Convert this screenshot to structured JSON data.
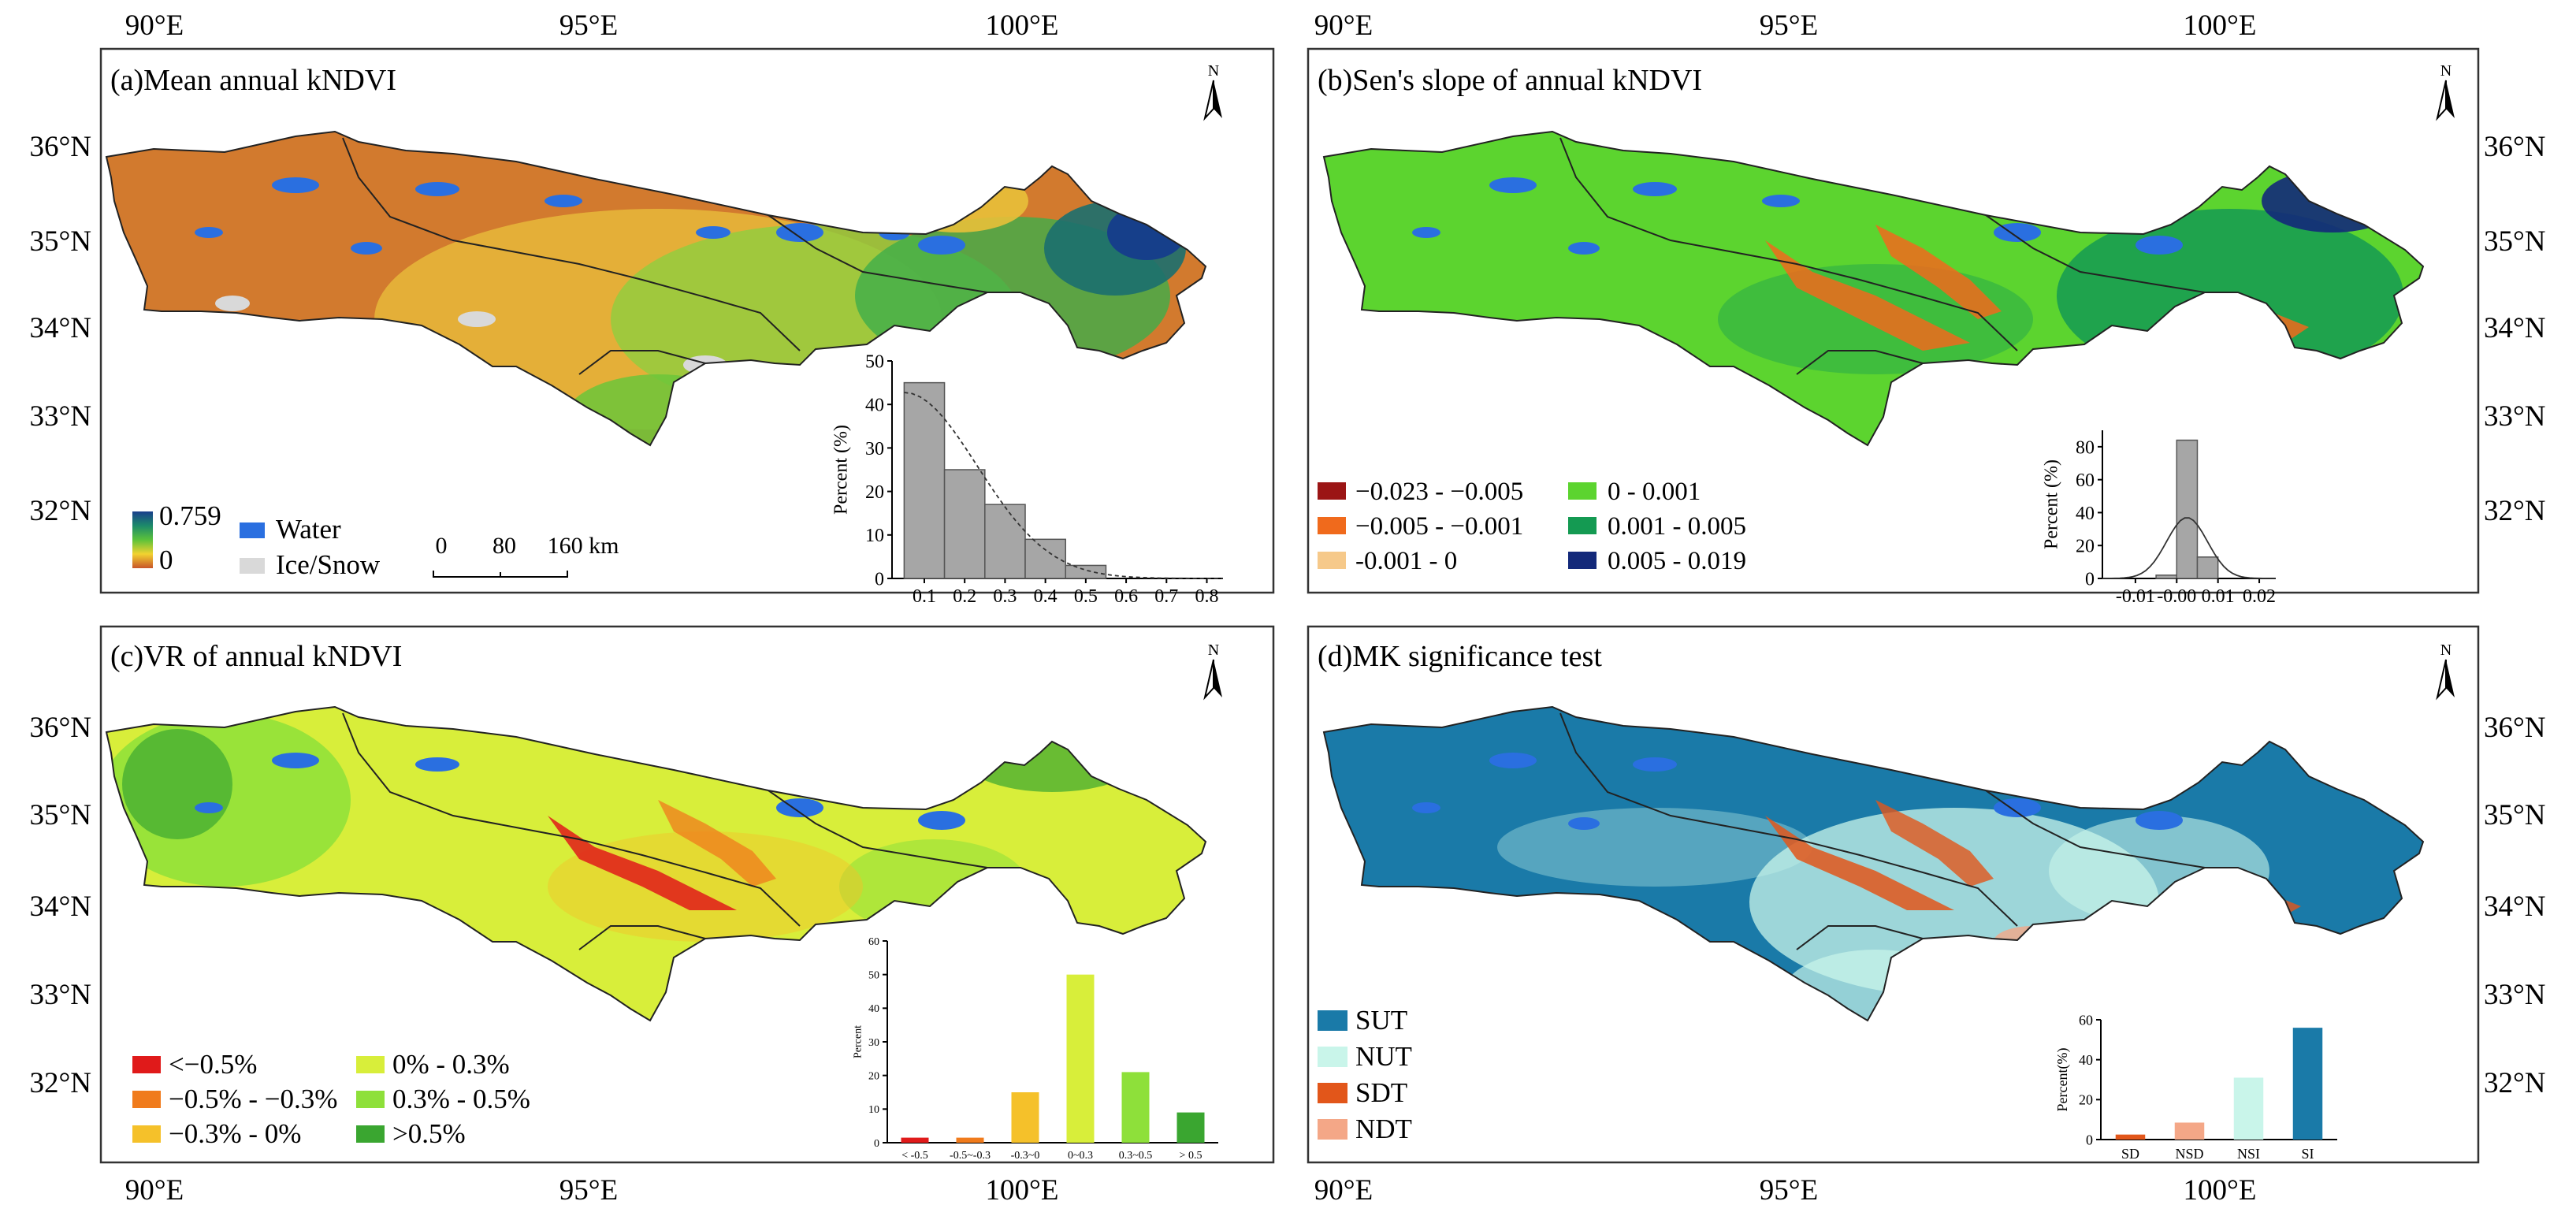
{
  "axes": {
    "top_lon": [
      "90°E",
      "95°E",
      "100°E"
    ],
    "bottom_lon": [
      "90°E",
      "95°E",
      "100°E"
    ],
    "left_lat_upper": [
      "36°N",
      "35°N",
      "34°N",
      "33°N",
      "32°N"
    ],
    "left_lat_lower": [
      "36°N",
      "35°N",
      "34°N",
      "33°N",
      "32°N"
    ],
    "right_lat_upper": [
      "36°N",
      "35°N",
      "34°N",
      "33°N",
      "32°N"
    ],
    "right_lat_lower": [
      "36°N",
      "35°N",
      "34°N",
      "33°N",
      "32°N"
    ],
    "north": "N"
  },
  "panels": {
    "a": {
      "title": "(a)Mean annual kNDVI",
      "colorbar_max": "0.759",
      "colorbar_min": "0",
      "legend": [
        "Water",
        "Ice/Snow"
      ],
      "legend_colors": [
        "#2a6fe0",
        "#d9d9d9"
      ],
      "scalebar": {
        "labels": [
          "0",
          "80",
          "160 km"
        ]
      }
    },
    "b": {
      "title": "(b)Sen's slope of annual kNDVI",
      "legend": [
        {
          "label": "−0.023 - −0.005",
          "color": "#9b1515"
        },
        {
          "label": "0 - 0.001",
          "color": "#5cd42f"
        },
        {
          "label": "−0.005 - −0.001",
          "color": "#f06a1c"
        },
        {
          "label": "0.001 - 0.005",
          "color": "#149a52"
        },
        {
          "label": "-0.001 - 0",
          "color": "#f6c98a"
        },
        {
          "label": "0.005 - 0.019",
          "color": "#13297a"
        }
      ]
    },
    "c": {
      "title": "(c)VR of annual kNDVI",
      "legend": [
        {
          "label": "<−0.5%",
          "color": "#e01a1a"
        },
        {
          "label": "0% - 0.3%",
          "color": "#d8ee3a"
        },
        {
          "label": "−0.5% - −0.3%",
          "color": "#f07b1c"
        },
        {
          "label": "0.3% - 0.5%",
          "color": "#8ee03a"
        },
        {
          "label": "−0.3% - 0%",
          "color": "#f5c12a"
        },
        {
          "label": ">0.5%",
          "color": "#3aa630"
        }
      ]
    },
    "d": {
      "title": "(d)MK significance test",
      "legend": [
        {
          "label": "SUT",
          "color": "#1a7aa8"
        },
        {
          "label": "NUT",
          "color": "#c9f5ea"
        },
        {
          "label": "SDT",
          "color": "#e2561a"
        },
        {
          "label": "NDT",
          "color": "#f4a787"
        }
      ]
    }
  },
  "chart_data": [
    {
      "panel": "a",
      "type": "bar",
      "ylabel": "Percent (%)",
      "x_ticks": [
        "0.1",
        "0.2",
        "0.3",
        "0.4",
        "0.5",
        "0.6",
        "0.7",
        "0.8"
      ],
      "y_ticks": [
        "0",
        "10",
        "20",
        "30",
        "40",
        "50"
      ],
      "ylim": [
        0,
        50
      ],
      "bin_edges": [
        0.05,
        0.15,
        0.25,
        0.35,
        0.45,
        0.55
      ],
      "values": [
        45,
        25,
        17,
        9,
        3
      ],
      "curve": "dashed",
      "bar_color": "#a6a6a6"
    },
    {
      "panel": "b",
      "type": "bar",
      "ylabel": "Percent (%)",
      "x_ticks": [
        "-0.01",
        "-0.00",
        "0.01",
        "0.02"
      ],
      "y_ticks": [
        "0",
        "20",
        "40",
        "60",
        "80"
      ],
      "ylim": [
        0,
        90
      ],
      "bin_edges": [
        -0.005,
        0.0,
        0.005,
        0.01
      ],
      "values": [
        2,
        84,
        13
      ],
      "curve": "solid",
      "bar_color": "#a6a6a6"
    },
    {
      "panel": "c",
      "type": "bar",
      "ylabel": "Percent",
      "categories": [
        "< -0.5",
        "-0.5~-0.3",
        "-0.3~0",
        "0~0.3",
        "0.3~0.5",
        "> 0.5"
      ],
      "values": [
        1.5,
        1.5,
        15,
        50,
        21,
        9
      ],
      "colors": [
        "#e01a1a",
        "#f07b1c",
        "#f5c12a",
        "#d8ee3a",
        "#8ee03a",
        "#3aa630"
      ],
      "y_ticks": [
        "0",
        "10",
        "20",
        "30",
        "40",
        "50",
        "60"
      ],
      "ylim": [
        0,
        60
      ]
    },
    {
      "panel": "d",
      "type": "bar",
      "ylabel": "Percent(%)",
      "categories": [
        "SD",
        "NSD",
        "NSI",
        "SI"
      ],
      "values": [
        2.5,
        8.5,
        31,
        56
      ],
      "colors": [
        "#e2561a",
        "#f4a787",
        "#c9f5ea",
        "#1a7aa8"
      ],
      "y_ticks": [
        "0",
        "20",
        "40",
        "60"
      ],
      "ylim": [
        0,
        60
      ]
    }
  ]
}
